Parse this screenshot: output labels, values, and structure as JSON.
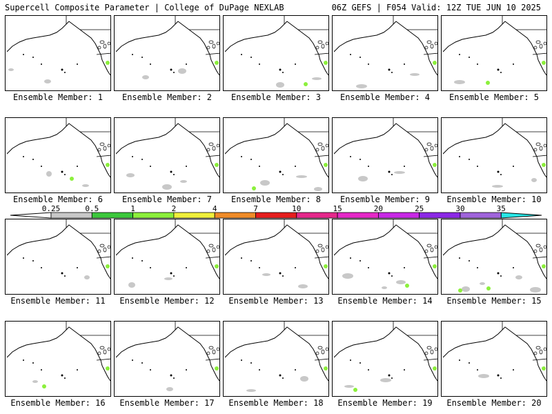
{
  "header": {
    "left": "Supercell Composite Parameter | College of DuPage NEXLAB",
    "right": "06Z GEFS | F054 Valid: 12Z TUE JUN 10 2025"
  },
  "member_prefix": "Ensemble Member:",
  "members": [
    {
      "label": "Ensemble Member: 1",
      "green": 1,
      "gray": 2
    },
    {
      "label": "Ensemble Member: 2",
      "green": 1,
      "gray": 2
    },
    {
      "label": "Ensemble Member: 3",
      "green": 2,
      "gray": 2
    },
    {
      "label": "Ensemble Member: 4",
      "green": 1,
      "gray": 2
    },
    {
      "label": "Ensemble Member: 5",
      "green": 2,
      "gray": 1
    },
    {
      "label": "Ensemble Member: 6",
      "green": 2,
      "gray": 2
    },
    {
      "label": "Ensemble Member: 7",
      "green": 1,
      "gray": 3
    },
    {
      "label": "Ensemble Member: 8",
      "green": 2,
      "gray": 3
    },
    {
      "label": "Ensemble Member: 9",
      "green": 1,
      "gray": 2
    },
    {
      "label": "Ensemble Member: 10",
      "green": 1,
      "gray": 2
    },
    {
      "label": "Ensemble Member: 11",
      "green": 1,
      "gray": 1
    },
    {
      "label": "Ensemble Member: 12",
      "green": 1,
      "gray": 2
    },
    {
      "label": "Ensemble Member: 13",
      "green": 1,
      "gray": 2
    },
    {
      "label": "Ensemble Member: 14",
      "green": 2,
      "gray": 3
    },
    {
      "label": "Ensemble Member: 15",
      "green": 3,
      "gray": 4
    },
    {
      "label": "Ensemble Member: 16",
      "green": 2,
      "gray": 1
    },
    {
      "label": "Ensemble Member: 17",
      "green": 1,
      "gray": 1
    },
    {
      "label": "Ensemble Member: 18",
      "green": 1,
      "gray": 2
    },
    {
      "label": "Ensemble Member: 19",
      "green": 2,
      "gray": 2
    },
    {
      "label": "Ensemble Member: 20",
      "green": 1,
      "gray": 1
    }
  ],
  "colorbar": {
    "labels": [
      "0.25",
      "0.5",
      "1",
      "2",
      "4",
      "7",
      "10",
      "15",
      "20",
      "25",
      "30",
      "35"
    ],
    "colors": [
      "#c8c8c8",
      "#3cc83c",
      "#8cf03c",
      "#f0f03c",
      "#f08c28",
      "#e61e1e",
      "#e6288c",
      "#e628c8",
      "#c828e6",
      "#8c28e6",
      "#a064dc",
      "#28e6e6"
    ]
  },
  "colors": {
    "land_outline": "#000000",
    "background": "#ffffff"
  }
}
